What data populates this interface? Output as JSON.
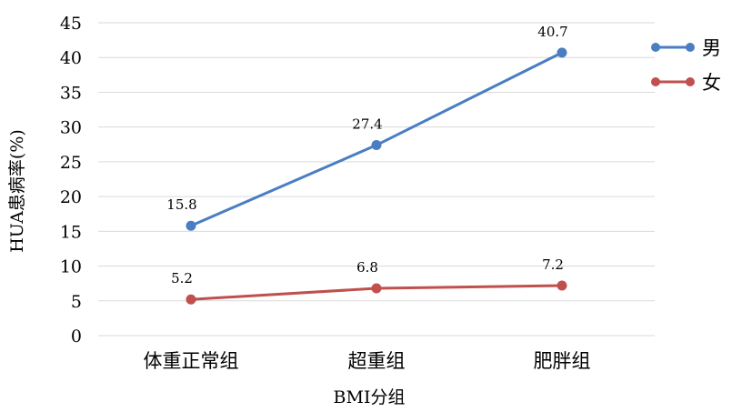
{
  "chart_data": {
    "type": "line",
    "title": "",
    "xlabel": "BMI分组",
    "ylabel": "HUA患病率(%)",
    "categories": [
      "体重正常组",
      "超重组",
      "肥胖组"
    ],
    "ylim": [
      0,
      45
    ],
    "yticks": [
      0,
      5,
      10,
      15,
      20,
      25,
      30,
      35,
      40,
      45
    ],
    "grid": true,
    "legend_position": "right",
    "series": [
      {
        "name": "男",
        "color": "#4A7EC2",
        "values": [
          15.8,
          27.4,
          40.7
        ],
        "labels": [
          "15.8",
          "27.4",
          "40.7"
        ]
      },
      {
        "name": "女",
        "color": "#C0504D",
        "values": [
          5.2,
          6.8,
          7.2
        ],
        "labels": [
          "5.2",
          "6.8",
          "7.2"
        ]
      }
    ]
  }
}
